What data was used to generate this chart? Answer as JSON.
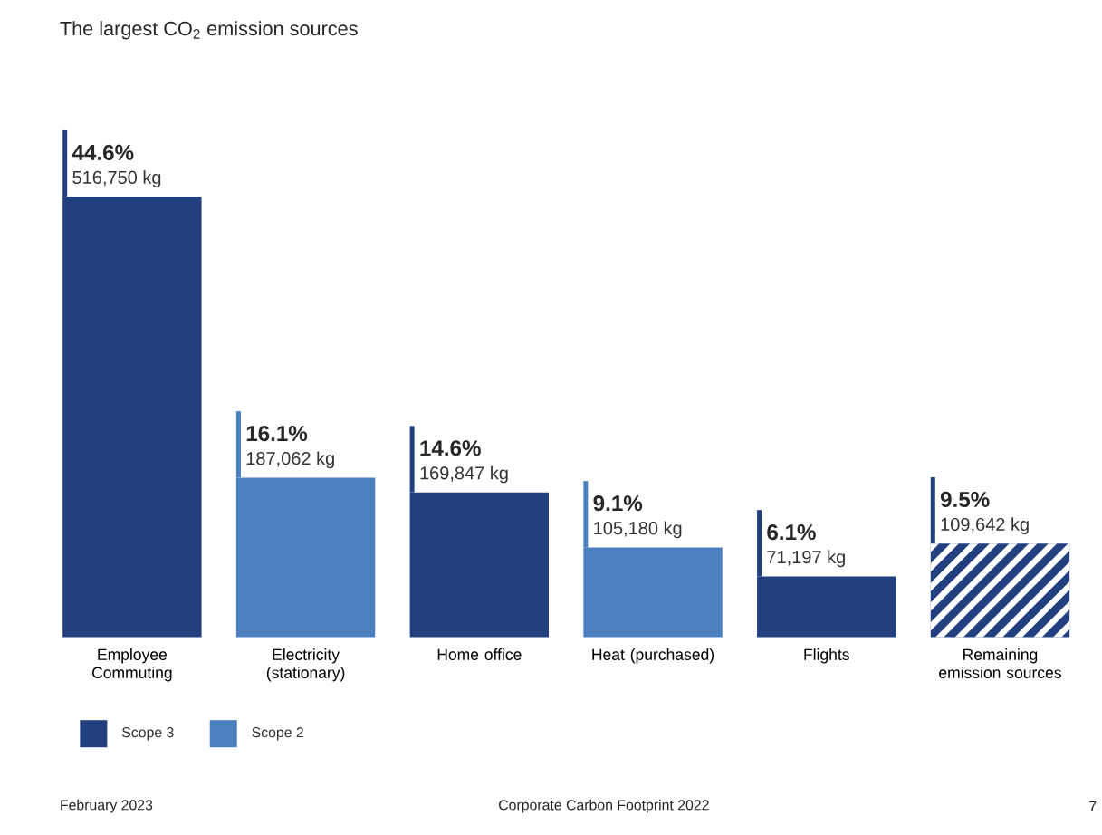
{
  "chart_data": {
    "type": "bar",
    "title": "The largest CO$_{2}$ emission sources",
    "categories": [
      "Employee Commuting",
      "Electricity (stationary)",
      "Home office",
      "Heat (purchased)",
      "Flights",
      "Remaining emission sources"
    ],
    "series": [
      {
        "name": "Scope 3",
        "color": "#22407f",
        "values": [
          516750,
          null,
          169847,
          null,
          71197,
          null
        ],
        "value_labels": [
          "516,750 kg",
          null,
          "169,847 kg",
          null,
          "71,197 kg",
          null
        ]
      },
      {
        "name": "Scope 2",
        "color": "#4a7fc0",
        "values": [
          null,
          187062,
          null,
          105180,
          null,
          null
        ],
        "value_labels": [
          null,
          "187,062 kg",
          null,
          "105,180 kg",
          null,
          null
        ]
      },
      {
        "color": "#22407f",
        "values": [
          null,
          null,
          null,
          null,
          null,
          109642
        ],
        "value_labels": [
          null,
          null,
          null,
          null,
          null,
          "109,642 kg"
        ]
      }
    ],
    "annotations": [
      "44.6%",
      "16.1%",
      "14.6%",
      "9.1%",
      "6.1%",
      "9.5%",
      "February 2023",
      "Corporate Carbon Footprint 2022",
      "7"
    ],
    "legend": "bottom left"
  }
}
